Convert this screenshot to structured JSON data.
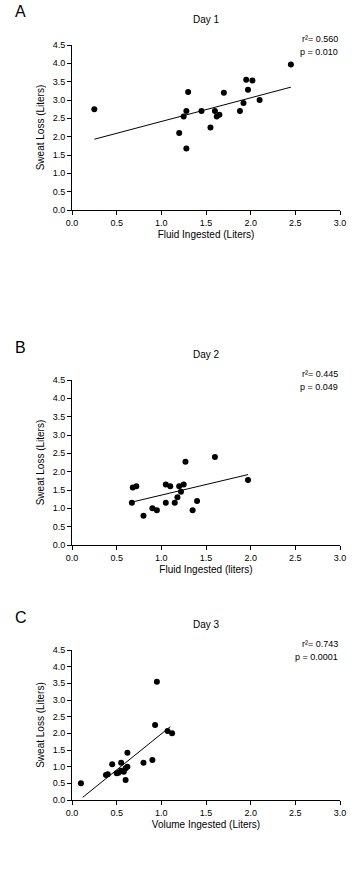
{
  "chart_data": [
    {
      "type": "scatter",
      "title": "Day 1",
      "panel_label": "A",
      "annotations": [
        "r²= 0.560",
        "p = 0.010"
      ],
      "x_label": "Fluid Ingested (Liters)",
      "y_label": "Sweat Loss (Liters)",
      "marker": "circle",
      "color": "#000000",
      "x": [
        0.25,
        1.2,
        1.25,
        1.28,
        1.28,
        1.3,
        1.45,
        1.55,
        1.6,
        1.62,
        1.65,
        1.7,
        1.88,
        1.92,
        1.95,
        1.97,
        2.02,
        2.1,
        2.45
      ],
      "values": [
        2.75,
        2.1,
        2.55,
        2.7,
        1.68,
        3.22,
        2.7,
        2.25,
        2.7,
        2.55,
        2.6,
        3.2,
        2.7,
        2.92,
        3.55,
        3.28,
        3.53,
        3.0,
        3.97
      ],
      "fit_line": {
        "x": [
          0.25,
          2.45
        ],
        "values": [
          1.93,
          3.35
        ]
      },
      "xlim": [
        0,
        3
      ],
      "ylim": [
        0,
        4.5
      ],
      "xticks": [
        {
          "value": 0,
          "label": "0.0"
        },
        {
          "value": 0.5,
          "label": "0.5"
        },
        {
          "value": 1,
          "label": "1.0"
        },
        {
          "value": 1.5,
          "label": "1.5"
        },
        {
          "value": 2,
          "label": "2.0"
        },
        {
          "value": 2.5,
          "label": "2.5"
        },
        {
          "value": 3,
          "label": "3.0"
        }
      ],
      "yticks": [
        {
          "value": 0,
          "label": "0.0"
        },
        {
          "value": 0.5,
          "label": "0.5"
        },
        {
          "value": 1,
          "label": "1.0"
        },
        {
          "value": 1.5,
          "label": "1.5"
        },
        {
          "value": 2,
          "label": "2.0"
        },
        {
          "value": 2.5,
          "label": "2.5"
        },
        {
          "value": 3,
          "label": "3.0"
        },
        {
          "value": 3.5,
          "label": "3.5"
        },
        {
          "value": 4,
          "label": "4.0"
        },
        {
          "value": 4.5,
          "label": "4.5"
        }
      ],
      "grid": false
    },
    {
      "type": "scatter",
      "title": "Day 2",
      "panel_label": "B",
      "annotations": [
        "r²= 0.445",
        "p = 0.049"
      ],
      "x_label": "Fluid Ingested (liters)",
      "y_label": "Sweat Loss (Liters)",
      "marker": "circle",
      "color": "#000000",
      "x": [
        0.67,
        0.68,
        0.72,
        0.8,
        0.9,
        0.95,
        1.05,
        1.05,
        1.1,
        1.15,
        1.18,
        1.2,
        1.22,
        1.25,
        1.27,
        1.35,
        1.4,
        1.6,
        1.97
      ],
      "values": [
        1.15,
        1.57,
        1.6,
        0.8,
        1.0,
        0.95,
        1.15,
        1.65,
        1.6,
        1.15,
        1.3,
        1.6,
        1.45,
        1.65,
        2.27,
        0.95,
        1.2,
        2.4,
        1.77
      ],
      "fit_line": {
        "x": [
          0.67,
          1.97
        ],
        "values": [
          1.17,
          1.92
        ]
      },
      "xlim": [
        0,
        3
      ],
      "ylim": [
        0,
        4.5
      ],
      "xticks": [
        {
          "value": 0,
          "label": "0.0"
        },
        {
          "value": 0.5,
          "label": "0.5"
        },
        {
          "value": 1,
          "label": "1.0"
        },
        {
          "value": 1.5,
          "label": "1.5"
        },
        {
          "value": 2,
          "label": "2.0"
        },
        {
          "value": 2.5,
          "label": "2.5"
        },
        {
          "value": 3,
          "label": "3.0"
        }
      ],
      "yticks": [
        {
          "value": 0,
          "label": "0.0"
        },
        {
          "value": 0.5,
          "label": "0.5"
        },
        {
          "value": 1,
          "label": "1.0"
        },
        {
          "value": 1.5,
          "label": "1.5"
        },
        {
          "value": 2,
          "label": "2.0"
        },
        {
          "value": 2.5,
          "label": "2.5"
        },
        {
          "value": 3,
          "label": "3.0"
        },
        {
          "value": 3.5,
          "label": "3.5"
        },
        {
          "value": 4,
          "label": "4.0"
        },
        {
          "value": 4.5,
          "label": "4.5"
        }
      ],
      "grid": false
    },
    {
      "type": "scatter",
      "title": "Day 3",
      "panel_label": "C",
      "annotations": [
        "r²= 0.743",
        "p = 0.0001"
      ],
      "x_label": "Volume Ingested (Liters)",
      "y_label": "Sweat Loss (Liters)",
      "marker": "circle",
      "color": "#000000",
      "x": [
        0.1,
        0.38,
        0.4,
        0.45,
        0.5,
        0.52,
        0.55,
        0.55,
        0.58,
        0.6,
        0.6,
        0.62,
        0.62,
        0.8,
        0.9,
        0.93,
        0.95,
        1.07,
        1.12
      ],
      "values": [
        0.5,
        0.75,
        0.77,
        1.07,
        0.8,
        0.82,
        0.88,
        1.12,
        0.85,
        0.6,
        0.95,
        1.0,
        1.42,
        1.12,
        1.2,
        2.25,
        3.55,
        2.07,
        2.0
      ],
      "fit_line": {
        "x": [
          0.12,
          1.1
        ],
        "values": [
          0.08,
          2.2
        ]
      },
      "xlim": [
        0,
        3
      ],
      "ylim": [
        0,
        4.5
      ],
      "xticks": [
        {
          "value": 0,
          "label": "0.0"
        },
        {
          "value": 0.5,
          "label": "0.5"
        },
        {
          "value": 1,
          "label": "1.0"
        },
        {
          "value": 1.5,
          "label": "1.5"
        },
        {
          "value": 2,
          "label": "2.0"
        },
        {
          "value": 2.5,
          "label": "2.5"
        },
        {
          "value": 3,
          "label": "3.0"
        }
      ],
      "yticks": [
        {
          "value": 0,
          "label": "0.0"
        },
        {
          "value": 0.5,
          "label": "0.5"
        },
        {
          "value": 1,
          "label": "1.0"
        },
        {
          "value": 1.5,
          "label": "1.5"
        },
        {
          "value": 2,
          "label": "2.0"
        },
        {
          "value": 2.5,
          "label": "2.5"
        },
        {
          "value": 3,
          "label": "3.0"
        },
        {
          "value": 3.5,
          "label": "3.5"
        },
        {
          "value": 4,
          "label": "4.0"
        },
        {
          "value": 4.5,
          "label": "4.5"
        }
      ],
      "grid": false
    }
  ]
}
